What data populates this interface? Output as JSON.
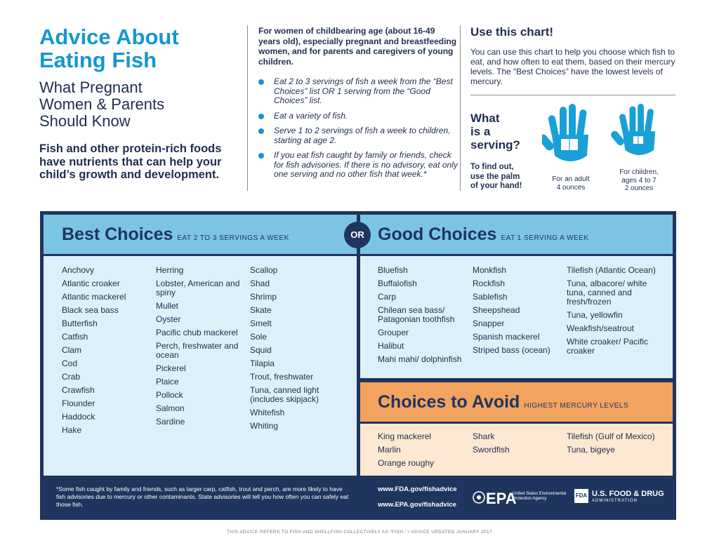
{
  "header": {
    "title_line1": "Advice About",
    "title_line2": "Eating Fish",
    "subtitle_line1": "What Pregnant",
    "subtitle_line2": "Women & Parents",
    "subtitle_line3": "Should Know",
    "intro": "Fish and other protein-rich foods have nutrients that can help your child’s growth and development."
  },
  "advice": {
    "audience": "For women of childbearing age (about 16-49 years old), especially pregnant and breastfeeding women, and for parents and caregivers of young children.",
    "bullets": [
      "Eat 2 to 3 servings of fish a week from the “Best Choices” list OR 1 serving from the “Good Choices” list.",
      "Eat a variety of fish.",
      "Serve 1 to 2 servings of fish a week to children, starting at age 2.",
      "If you eat fish caught by family or friends, check for fish advisories. If there is no advisory, eat only one serving and no other fish that week.*"
    ]
  },
  "chart_help": {
    "title": "Use this chart!",
    "text": "You can use this chart to help you choose which fish to eat, and how often to eat them, based on their mercury levels. The “Best Choices” have the lowest levels of mercury.",
    "serving_q_1": "What",
    "serving_q_2": "is a",
    "serving_q_3": "serving?",
    "find_out_1": "To find out,",
    "find_out_2": "use the palm",
    "find_out_3": "of your hand!",
    "adult_label": "For an adult",
    "adult_amount": "4 ounces",
    "child_label_1": "For children,",
    "child_label_2": "ages 4 to 7",
    "child_amount": "2 ounces"
  },
  "best": {
    "title": "Best Choices",
    "subtitle": "EAT 2 TO 3 SERVINGS A WEEK",
    "col1": [
      "Anchovy",
      "Atlantic croaker",
      "Atlantic mackerel",
      "Black sea bass",
      "Butterfish",
      "Catfish",
      "Clam",
      "Cod",
      "Crab",
      "Crawfish",
      "Flounder",
      "Haddock",
      "Hake"
    ],
    "col2": [
      "Herring",
      "Lobster, American and spiny",
      "Mullet",
      "Oyster",
      "Pacific chub mackerel",
      "Perch, freshwater and ocean",
      "Pickerel",
      "Plaice",
      "Pollock",
      "Salmon",
      "Sardine"
    ],
    "col3": [
      "Scallop",
      "Shad",
      "Shrimp",
      "Skate",
      "Smelt",
      "Sole",
      "Squid",
      "Tilapia",
      "Trout, freshwater",
      "Tuna, canned light (includes skipjack)",
      "Whitefish",
      "Whiting"
    ]
  },
  "or_label": "OR",
  "good": {
    "title": "Good Choices",
    "subtitle": "EAT 1 SERVING A WEEK",
    "col1": [
      "Bluefish",
      "Buffalofish",
      "Carp",
      "Chilean sea bass/ Patagonian toothfish",
      "Grouper",
      "Halibut",
      "Mahi mahi/ dolphinfish"
    ],
    "col2": [
      "Monkfish",
      "Rockfish",
      "Sablefish",
      "Sheepshead",
      "Snapper",
      "Spanish mackerel",
      "Striped bass (ocean)"
    ],
    "col3": [
      "Tilefish (Atlantic Ocean)",
      "Tuna, albacore/ white tuna, canned and fresh/frozen",
      "Tuna, yellowfin",
      "Weakfish/seatrout",
      "White croaker/ Pacific croaker"
    ]
  },
  "avoid": {
    "title": "Choices to Avoid",
    "subtitle": "HIGHEST MERCURY LEVELS",
    "col1": [
      "King mackerel",
      "Marlin",
      "Orange roughy"
    ],
    "col2": [
      "Shark",
      "Swordfish"
    ],
    "col3": [
      "Tilefish (Gulf of Mexico)",
      "Tuna, bigeye"
    ]
  },
  "footer": {
    "note": "*Some fish caught by family and friends, such as larger carp, catfish, trout and perch, are more likely to have fish advisories due to mercury or other contaminants. State advisories will tell you how often you can safely eat those fish.",
    "url_fda": "www.FDA.gov/fishadvice",
    "url_epa": "www.EPA.gov/fishadvice",
    "epa_logo": "EPA",
    "epa_sub": "United States Environmental Protection Agency",
    "fda_box": "FDA",
    "fda_name": "U.S. FOOD & DRUG",
    "fda_admin": "ADMINISTRATION",
    "bottom_note": "THIS ADVICE REFERS TO FISH AND SHELLFISH COLLECTIVELY AS “FISH.” / ADVICE UPDATED JANUARY 2017"
  },
  "colors": {
    "brand_blue": "#1497cf",
    "navy": "#1f355e",
    "light_blue": "#7cc4e4",
    "pale_blue": "#ddeff8",
    "orange": "#f2a35f",
    "pale_orange": "#fde8d3"
  }
}
